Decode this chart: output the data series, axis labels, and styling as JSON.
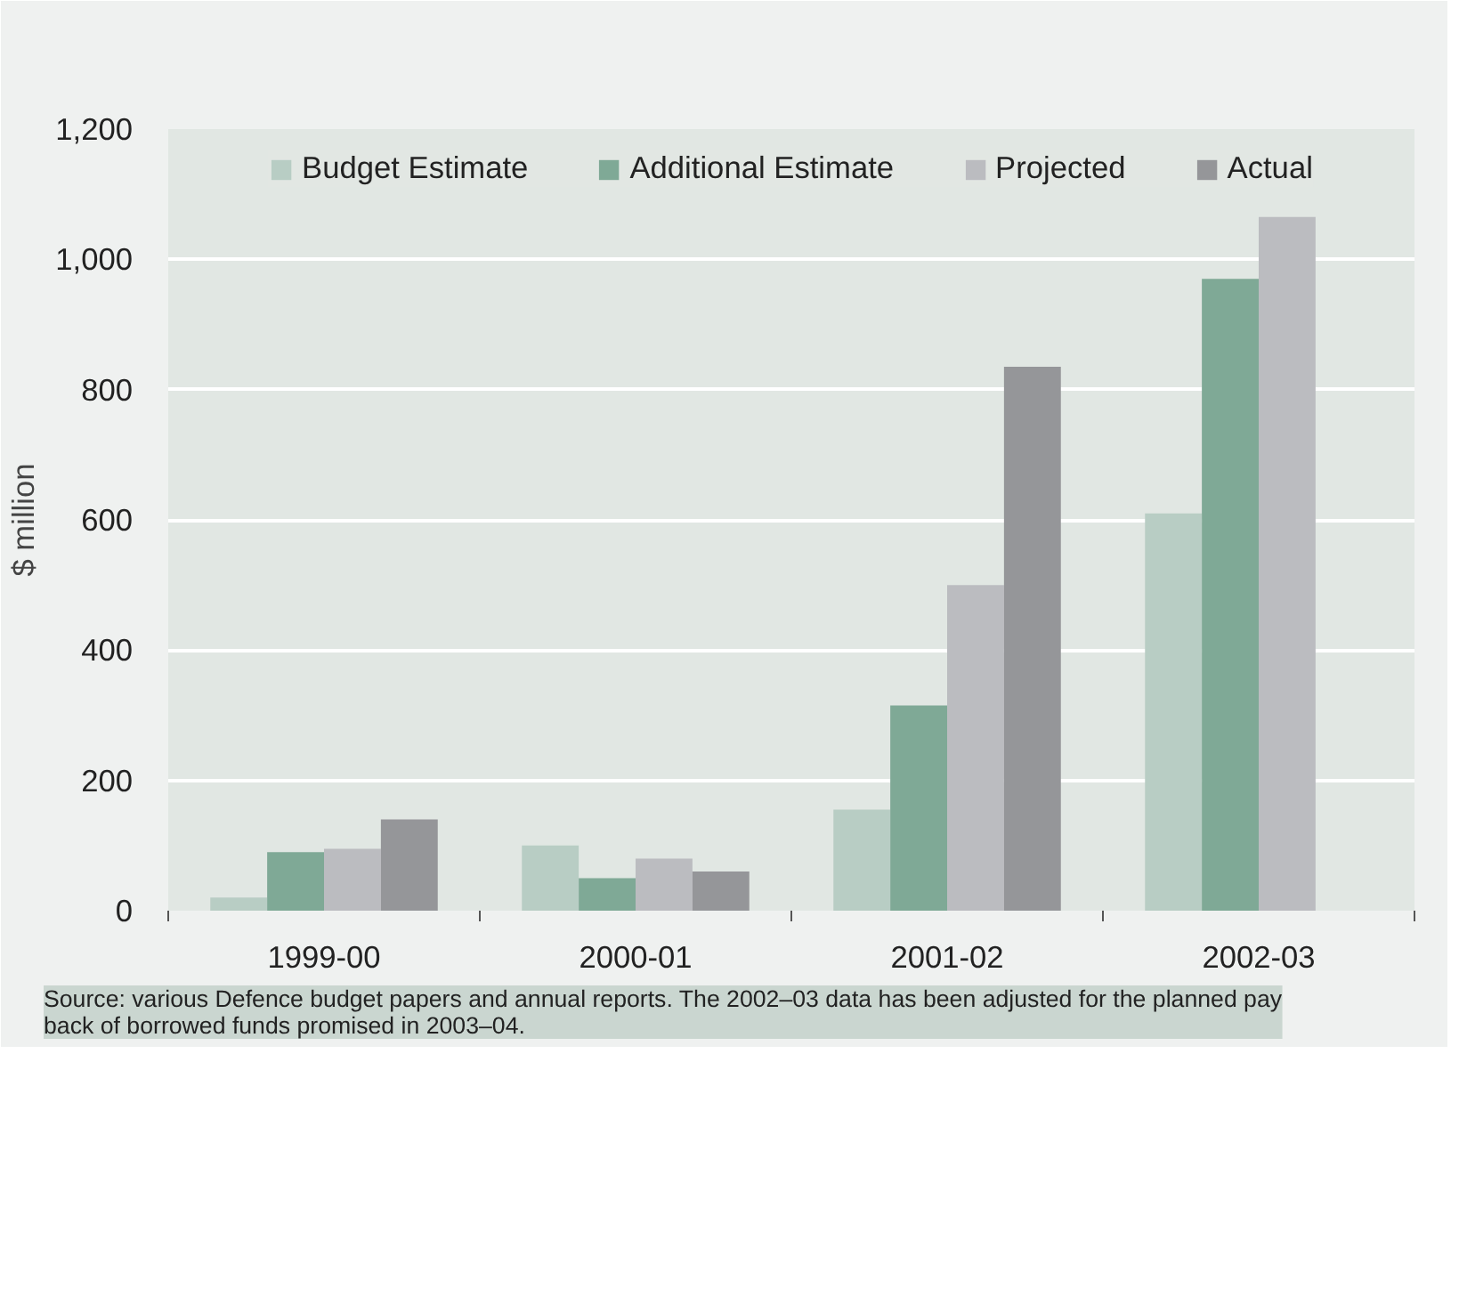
{
  "chart_data": {
    "type": "bar",
    "ylabel": "$ million",
    "categories": [
      "1999-00",
      "2000-01",
      "2001-02",
      "2002-03"
    ],
    "series": [
      {
        "name": "Budget Estimate",
        "color": "#b8cdc4",
        "values": [
          20,
          100,
          155,
          610
        ]
      },
      {
        "name": "Additional Estimate",
        "color": "#7fa996",
        "values": [
          90,
          50,
          315,
          970
        ]
      },
      {
        "name": "Projected",
        "color": "#bbbcc0",
        "values": [
          95,
          80,
          500,
          1065
        ]
      },
      {
        "name": "Actual",
        "color": "#959699",
        "values": [
          140,
          60,
          835,
          null
        ]
      }
    ],
    "ylim": [
      0,
      1200
    ],
    "yticks": [
      0,
      200,
      400,
      600,
      800,
      {
        "value": 1000,
        "label": "1,000"
      },
      {
        "value": 1200,
        "label": "1,200"
      }
    ],
    "grid": "y",
    "legend": "top",
    "annotations": [
      "Source: various Defence budget papers and annual reports. The 2002–03 data has been adjusted for the planned pay back of borrowed funds promised in 2003–04."
    ]
  }
}
